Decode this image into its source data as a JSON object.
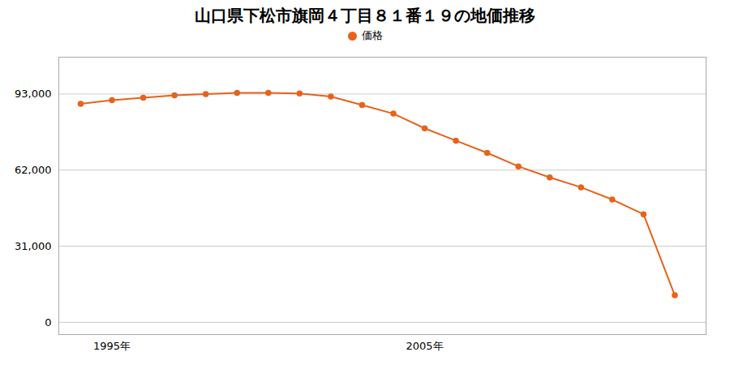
{
  "chart_data": {
    "type": "line",
    "title": "山口県下松市旗岡４丁目８１番１９の地価推移",
    "x": [
      1994,
      1995,
      1996,
      1997,
      1998,
      1999,
      2000,
      2001,
      2002,
      2003,
      2004,
      2005,
      2006,
      2007,
      2008,
      2009,
      2010,
      2011,
      2012,
      2013
    ],
    "series": [
      {
        "name": "価格",
        "color": "#E8621A",
        "marker": "circle",
        "values": [
          89000,
          90500,
          91500,
          92500,
          93000,
          93500,
          93500,
          93200,
          92000,
          88500,
          85000,
          79000,
          74000,
          69000,
          63500,
          59000,
          55000,
          50000,
          44000,
          11000
        ]
      }
    ],
    "xlim": [
      1993.3,
      2014.0
    ],
    "xticks": [
      {
        "value": 1995,
        "label": "1995年"
      },
      {
        "value": 2005,
        "label": "2005年"
      }
    ],
    "ylim": [
      -5000,
      108000
    ],
    "yticks": [
      0,
      {
        "value": 31000,
        "label": "31,000"
      },
      {
        "value": 62000,
        "label": "62,000"
      },
      {
        "value": 93000,
        "label": "93,000"
      }
    ],
    "grid": true,
    "legend": "top"
  }
}
